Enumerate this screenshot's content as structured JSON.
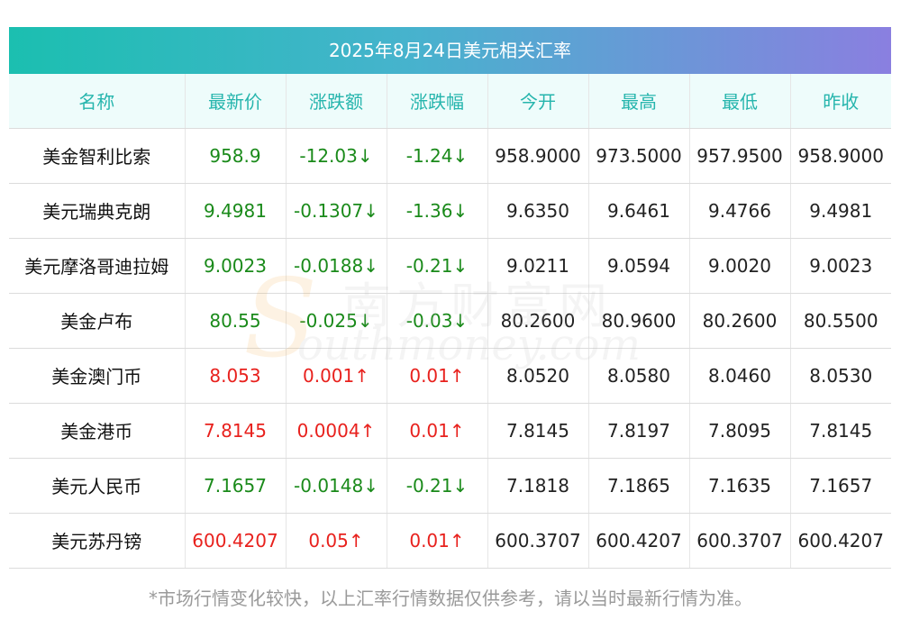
{
  "title": "2025年8月24日美元相关汇率",
  "headers": [
    "名称",
    "最新价",
    "涨跌额",
    "涨跌幅",
    "今开",
    "最高",
    "最低",
    "昨收"
  ],
  "rows": [
    {
      "name": "美金智利比索",
      "latest": "958.9",
      "change": "-12.03↓",
      "pct": "-1.24↓",
      "open": "958.9000",
      "high": "973.5000",
      "low": "957.9500",
      "prev": "958.9000",
      "dir": "down"
    },
    {
      "name": "美元瑞典克朗",
      "latest": "9.4981",
      "change": "-0.1307↓",
      "pct": "-1.36↓",
      "open": "9.6350",
      "high": "9.6461",
      "low": "9.4766",
      "prev": "9.4981",
      "dir": "down"
    },
    {
      "name": "美元摩洛哥迪拉姆",
      "latest": "9.0023",
      "change": "-0.0188↓",
      "pct": "-0.21↓",
      "open": "9.0211",
      "high": "9.0594",
      "low": "9.0020",
      "prev": "9.0023",
      "dir": "down"
    },
    {
      "name": "美金卢布",
      "latest": "80.55",
      "change": "-0.025↓",
      "pct": "-0.03↓",
      "open": "80.2600",
      "high": "80.9600",
      "low": "80.2600",
      "prev": "80.5500",
      "dir": "down"
    },
    {
      "name": "美金澳门币",
      "latest": "8.053",
      "change": "0.001↑",
      "pct": "0.01↑",
      "open": "8.0520",
      "high": "8.0580",
      "low": "8.0460",
      "prev": "8.0530",
      "dir": "up"
    },
    {
      "name": "美金港币",
      "latest": "7.8145",
      "change": "0.0004↑",
      "pct": "0.01↑",
      "open": "7.8145",
      "high": "7.8197",
      "low": "7.8095",
      "prev": "7.8145",
      "dir": "up"
    },
    {
      "name": "美元人民币",
      "latest": "7.1657",
      "change": "-0.0148↓",
      "pct": "-0.21↓",
      "open": "7.1818",
      "high": "7.1865",
      "low": "7.1635",
      "prev": "7.1657",
      "dir": "down"
    },
    {
      "name": "美元苏丹镑",
      "latest": "600.4207",
      "change": "0.05↑",
      "pct": "0.01↑",
      "open": "600.3707",
      "high": "600.4207",
      "low": "600.3707",
      "prev": "600.4207",
      "dir": "up"
    }
  ],
  "footnote": "*市场行情变化较快，以上汇率行情数据仅供参考，请以当时最新行情为准。",
  "watermark": {
    "cn": "南方财富网",
    "en": "outhmoney.com",
    "s": "S"
  },
  "colors": {
    "down": "#1a8a1a",
    "up": "#e8211d",
    "header_text": "#26b5ad"
  }
}
